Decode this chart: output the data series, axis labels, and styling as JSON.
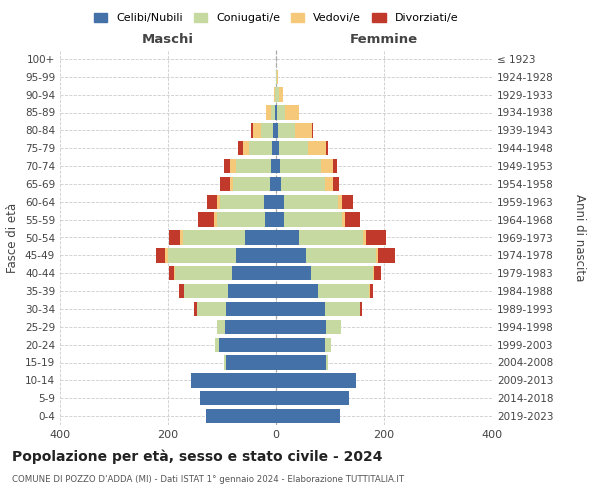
{
  "age_groups": [
    "0-4",
    "5-9",
    "10-14",
    "15-19",
    "20-24",
    "25-29",
    "30-34",
    "35-39",
    "40-44",
    "45-49",
    "50-54",
    "55-59",
    "60-64",
    "65-69",
    "70-74",
    "75-79",
    "80-84",
    "85-89",
    "90-94",
    "95-99",
    "100+"
  ],
  "birth_years": [
    "2019-2023",
    "2014-2018",
    "2009-2013",
    "2004-2008",
    "1999-2003",
    "1994-1998",
    "1989-1993",
    "1984-1988",
    "1979-1983",
    "1974-1978",
    "1969-1973",
    "1964-1968",
    "1959-1963",
    "1954-1958",
    "1949-1953",
    "1944-1948",
    "1939-1943",
    "1934-1938",
    "1929-1933",
    "1924-1928",
    "≤ 1923"
  ],
  "colors": {
    "celibi": "#4472a8",
    "coniugati": "#c5d9a0",
    "vedovi": "#f5c87a",
    "divorziati": "#c0392b"
  },
  "maschi": {
    "celibi": [
      130,
      140,
      158,
      92,
      105,
      95,
      92,
      88,
      82,
      75,
      58,
      20,
      22,
      12,
      10,
      8,
      5,
      2,
      0,
      0,
      0
    ],
    "coniugati": [
      0,
      0,
      0,
      5,
      8,
      15,
      55,
      82,
      105,
      125,
      115,
      90,
      82,
      68,
      65,
      42,
      22,
      8,
      2,
      0,
      0
    ],
    "vedovi": [
      0,
      0,
      0,
      0,
      0,
      0,
      0,
      1,
      2,
      5,
      4,
      4,
      5,
      6,
      10,
      12,
      15,
      8,
      2,
      0,
      0
    ],
    "divorziati": [
      0,
      0,
      0,
      0,
      0,
      0,
      5,
      8,
      10,
      18,
      22,
      30,
      18,
      18,
      12,
      8,
      5,
      0,
      0,
      0,
      0
    ]
  },
  "femmine": {
    "celibi": [
      118,
      135,
      148,
      92,
      90,
      92,
      90,
      78,
      65,
      55,
      42,
      15,
      15,
      10,
      8,
      5,
      4,
      2,
      0,
      0,
      0
    ],
    "coniugati": [
      0,
      0,
      0,
      5,
      12,
      28,
      65,
      95,
      115,
      130,
      120,
      108,
      100,
      80,
      75,
      55,
      32,
      15,
      5,
      1,
      0
    ],
    "vedovi": [
      0,
      0,
      0,
      0,
      0,
      0,
      0,
      1,
      2,
      4,
      4,
      5,
      8,
      15,
      22,
      32,
      30,
      25,
      8,
      2,
      0
    ],
    "divorziati": [
      0,
      0,
      0,
      0,
      0,
      0,
      5,
      5,
      12,
      32,
      38,
      28,
      20,
      12,
      8,
      5,
      3,
      0,
      0,
      0,
      0
    ]
  },
  "xlim": 400,
  "title": "Popolazione per età, sesso e stato civile - 2024",
  "subtitle": "COMUNE DI POZZO D'ADDA (MI) - Dati ISTAT 1° gennaio 2024 - Elaborazione TUTTITALIA.IT",
  "ylabel_left": "Fasce di età",
  "ylabel_right": "Anni di nascita",
  "xlabel_left": "Maschi",
  "xlabel_right": "Femmine",
  "legend_labels": [
    "Celibi/Nubili",
    "Coniugati/e",
    "Vedovi/e",
    "Divorziati/e"
  ],
  "bg_color": "#ffffff",
  "grid_color": "#cccccc"
}
